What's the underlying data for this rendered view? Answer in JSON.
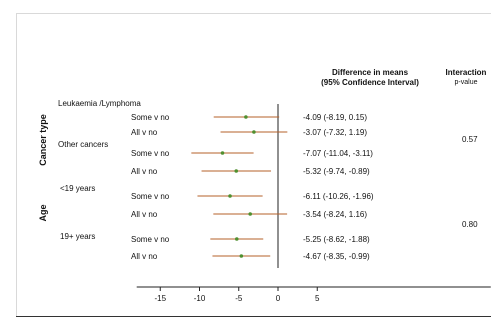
{
  "chart_data": {
    "type": "forest",
    "header": {
      "estimate_title_line1": "Difference in means",
      "estimate_title_line2": "(95% Confidence Interval)",
      "interaction_title": "Interaction",
      "interaction_subtitle": "p-value"
    },
    "groups": [
      {
        "name": "Cancer type",
        "interaction_p": "0.57",
        "subgroups": [
          {
            "name": "Leukaemia /Lymphoma",
            "rows": [
              {
                "label": "Some v no",
                "mean": -4.09,
                "lower": -8.19,
                "upper": 0.15,
                "text": "-4.09 (-8.19, 0.15)"
              },
              {
                "label": "All v no",
                "mean": -3.07,
                "lower": -7.32,
                "upper": 1.19,
                "text": "-3.07 (-7.32, 1.19)"
              }
            ]
          },
          {
            "name": "Other cancers",
            "rows": [
              {
                "label": "Some v no",
                "mean": -7.07,
                "lower": -11.04,
                "upper": -3.11,
                "text": "-7.07 (-11.04, -3.11)"
              },
              {
                "label": "All v no",
                "mean": -5.32,
                "lower": -9.74,
                "upper": -0.89,
                "text": "-5.32 (-9.74, -0.89)"
              }
            ]
          }
        ]
      },
      {
        "name": "Age",
        "interaction_p": "0.80",
        "subgroups": [
          {
            "name": "<19 years",
            "rows": [
              {
                "label": "Some v no",
                "mean": -6.11,
                "lower": -10.26,
                "upper": -1.96,
                "text": "-6.11 (-10.26, -1.96)"
              },
              {
                "label": "All v no",
                "mean": -3.54,
                "lower": -8.24,
                "upper": 1.16,
                "text": "-3.54 (-8.24, 1.16)"
              }
            ]
          },
          {
            "name": "19+ years",
            "rows": [
              {
                "label": "Some v no",
                "mean": -5.25,
                "lower": -8.62,
                "upper": -1.88,
                "text": "-5.25 (-8.62, -1.88)"
              },
              {
                "label": "All v no",
                "mean": -4.67,
                "lower": -8.35,
                "upper": -0.99,
                "text": "-4.67 (-8.35, -0.99)"
              }
            ]
          }
        ]
      }
    ],
    "x_ticks": [
      -15,
      -10,
      -5,
      0,
      5
    ],
    "xlim": [
      -18,
      8
    ],
    "reference_line": 0,
    "colors": {
      "ci_line": "#b5602a",
      "point": "#4f8f2f",
      "reference": "#222222",
      "axis": "#222222"
    }
  }
}
